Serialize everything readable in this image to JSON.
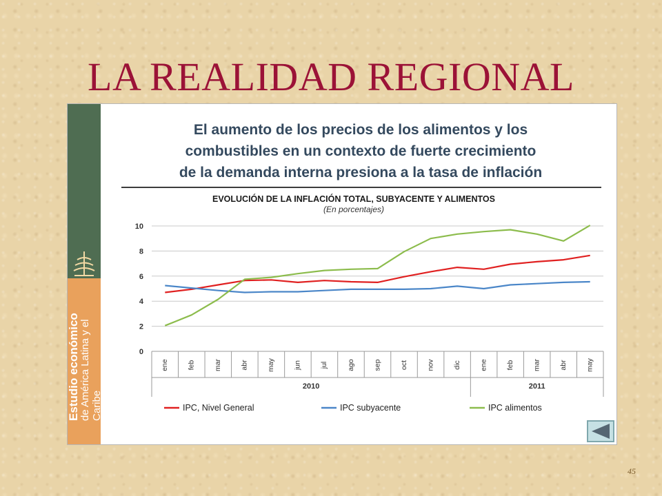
{
  "slide": {
    "title": "LA REALIDAD REGIONAL",
    "page_number": "45"
  },
  "panel": {
    "headline_lines": [
      "El aumento de los precios de los alimentos  y los",
      "combustibles en un contexto de fuerte crecimiento",
      "de la demanda interna presiona a la tasa de inflación"
    ],
    "sidebar": {
      "line1": "Estudio económico",
      "line2": "de América Latina y el Caribe"
    }
  },
  "chart_data": {
    "type": "line",
    "title": "EVOLUCIÓN DE LA INFLACIÓN TOTAL, SUBYACENTE Y ALIMENTOS",
    "subtitle": "(En porcentajes)",
    "categories": [
      "ene",
      "feb",
      "mar",
      "abr",
      "may",
      "jun",
      "jul",
      "ago",
      "sep",
      "oct",
      "nov",
      "dic",
      "ene",
      "feb",
      "mar",
      "abr",
      "may"
    ],
    "year_groups": [
      {
        "label": "2010",
        "count": 12
      },
      {
        "label": "2011",
        "count": 5
      }
    ],
    "ylim": [
      0,
      10
    ],
    "yticks": [
      0,
      2,
      4,
      6,
      8,
      10
    ],
    "grid": true,
    "legend_position": "bottom",
    "series": [
      {
        "name": "IPC, Nivel General",
        "color": "#e02020",
        "values": [
          4.7,
          4.95,
          5.3,
          5.65,
          5.7,
          5.5,
          5.65,
          5.55,
          5.5,
          5.95,
          6.35,
          6.7,
          6.55,
          6.95,
          7.15,
          7.3,
          7.65
        ]
      },
      {
        "name": "IPC subyacente",
        "color": "#4a86c8",
        "values": [
          5.25,
          5.05,
          4.85,
          4.7,
          4.75,
          4.75,
          4.85,
          4.95,
          4.95,
          4.95,
          5.0,
          5.2,
          5.0,
          5.3,
          5.4,
          5.5,
          5.55
        ]
      },
      {
        "name": "IPC alimentos",
        "color": "#8cbc4c",
        "values": [
          2.05,
          2.9,
          4.15,
          5.75,
          5.9,
          6.2,
          6.45,
          6.55,
          6.6,
          7.95,
          9.0,
          9.35,
          9.55,
          9.7,
          9.35,
          8.8,
          10.05
        ]
      }
    ]
  }
}
